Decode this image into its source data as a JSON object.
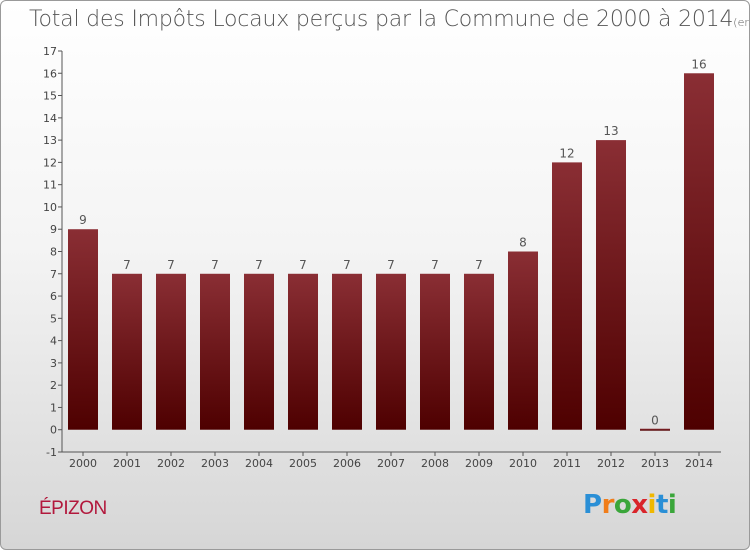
{
  "chart_data": {
    "type": "bar",
    "title": "Total des Impôts Locaux perçus par la Commune de 2000 à 2014",
    "title_unit": "(en milliers d'€)",
    "categories": [
      "2000",
      "2001",
      "2002",
      "2003",
      "2004",
      "2005",
      "2006",
      "2007",
      "2008",
      "2009",
      "2010",
      "2011",
      "2012",
      "2013",
      "2014"
    ],
    "values": [
      9,
      7,
      7,
      7,
      7,
      7,
      7,
      7,
      7,
      7,
      8,
      12,
      13,
      0,
      16
    ],
    "data_labels": [
      "9",
      "7",
      "7",
      "7",
      "7",
      "7",
      "7",
      "7",
      "7",
      "7",
      "8",
      "12",
      "13",
      "0",
      "16"
    ],
    "ylim": [
      -1,
      17
    ],
    "yticks": [
      -1,
      0,
      1,
      2,
      3,
      4,
      5,
      6,
      7,
      8,
      9,
      10,
      11,
      12,
      13,
      14,
      15,
      16,
      17
    ],
    "xlabel": "",
    "ylabel": "",
    "grid": false,
    "bar_color_top": "#8a2e34",
    "bar_color_bottom": "#4e0000"
  },
  "footer": {
    "commune": "ÉPIZON",
    "logo_letters": [
      "P",
      "r",
      "o",
      "x",
      "i",
      "t",
      "i"
    ],
    "logo_colors": [
      "#2a8fd6",
      "#f07d1a",
      "#3aa63a",
      "#d9242a",
      "#f0b800",
      "#2a8fd6",
      "#3aa63a"
    ]
  }
}
